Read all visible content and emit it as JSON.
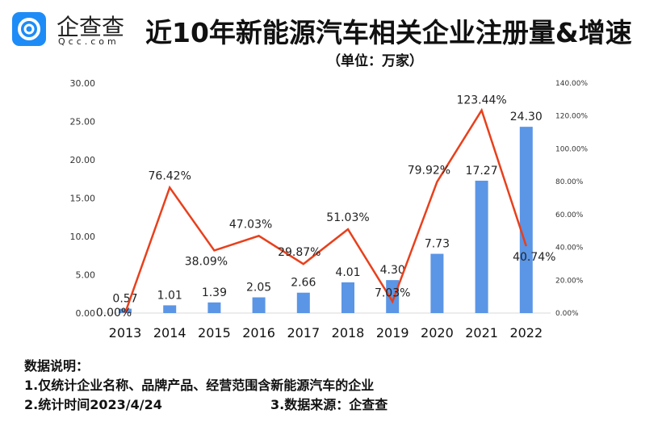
{
  "logo": {
    "text": "企查查",
    "sub": "Qcc.com"
  },
  "title": "近10年新能源汽车相关企业注册量&增速",
  "subtitle": "（单位：万家）",
  "chart_data": {
    "type": "bar+line",
    "categories": [
      "2013",
      "2014",
      "2015",
      "2016",
      "2017",
      "2018",
      "2019",
      "2020",
      "2021",
      "2022"
    ],
    "series": [
      {
        "type": "bar",
        "axis": "left",
        "color": "#5b95e5",
        "values": [
          0.57,
          1.01,
          1.39,
          2.05,
          2.66,
          4.01,
          4.3,
          7.73,
          17.27,
          24.3
        ],
        "labels": [
          "0.57",
          "1.01",
          "1.39",
          "2.05",
          "2.66",
          "4.01",
          "4.30",
          "7.73",
          "17.27",
          "24.30"
        ]
      },
      {
        "type": "line",
        "axis": "right",
        "color": "#e8401c",
        "values": [
          0.0,
          76.42,
          38.09,
          47.03,
          29.87,
          51.03,
          7.03,
          79.92,
          123.44,
          40.74
        ],
        "labels": [
          "0.00%",
          "76.42%",
          "38.09%",
          "47.03%",
          "29.87%",
          "51.03%",
          "7.03%",
          "79.92%",
          "123.44%",
          "40.74%"
        ]
      }
    ],
    "left_axis": {
      "ylim": [
        0,
        30
      ],
      "ticks": [
        "0.00",
        "5.00",
        "10.00",
        "15.00",
        "20.00",
        "25.00",
        "30.00"
      ]
    },
    "right_axis": {
      "ylim": [
        0,
        140
      ],
      "ticks": [
        "0.00%",
        "20.00%",
        "40.00%",
        "60.00%",
        "80.00%",
        "100.00%",
        "120.00%",
        "140.00%"
      ]
    },
    "grid": false
  },
  "notes": {
    "heading": "数据说明：",
    "line1": "1.仅统计企业名称、品牌产品、经营范围含新能源汽车的企业",
    "line2a": "2.统计时间2023/4/24",
    "line2b": "3.数据来源：企查查"
  }
}
